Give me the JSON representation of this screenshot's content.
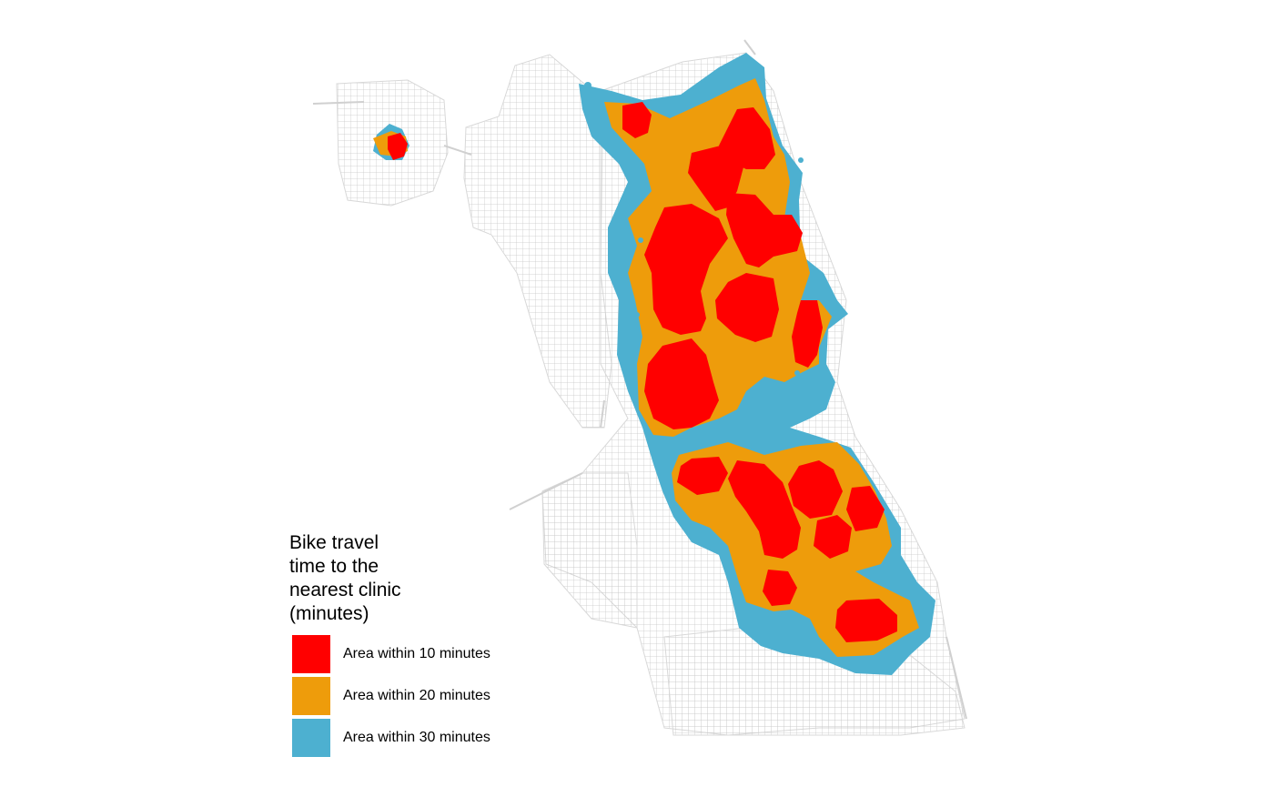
{
  "legend": {
    "title": "Bike travel\ntime to the\nnearest clinic\n(minutes)",
    "items": [
      {
        "label": "Area within 10 minutes",
        "color": "#ff0000",
        "minutes": 10
      },
      {
        "label": "Area within 20 minutes",
        "color": "#ee9c0b",
        "minutes": 20
      },
      {
        "label": "Area within 30 minutes",
        "color": "#4db0d0",
        "minutes": 30
      }
    ]
  },
  "colors": {
    "background": "#ffffff",
    "road_network": "#cccccc"
  }
}
